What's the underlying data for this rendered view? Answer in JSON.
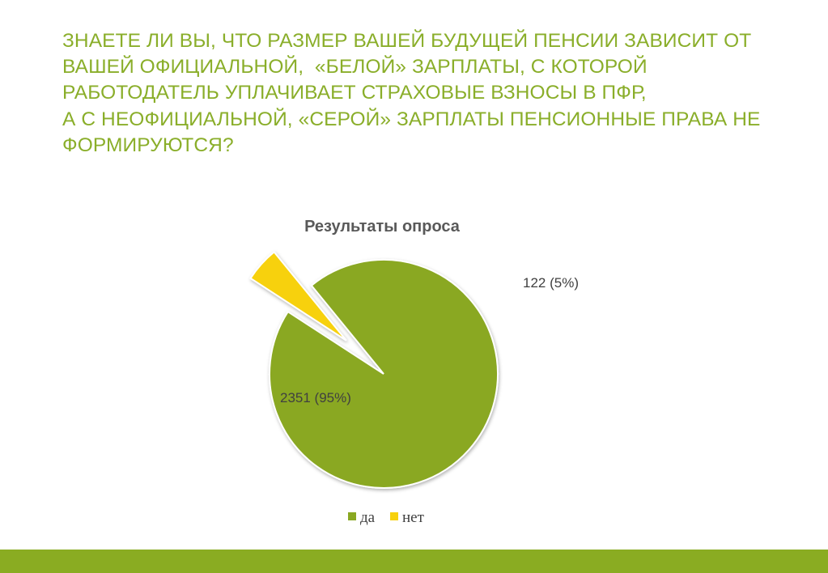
{
  "heading": {
    "lines": [
      "ЗНАЕТЕ ЛИ ВЫ, ЧТО РАЗМЕР ВАШЕЙ БУДУЩЕЙ ПЕНСИИ ЗАВИСИТ ОТ",
      "ВАШЕЙ ОФИЦИАЛЬНОЙ,  «БЕЛОЙ» ЗАРПЛАТЫ, С КОТОРОЙ",
      "РАБОТОДАТЕЛЬ УПЛАЧИВАЕТ СТРАХОВЫЕ ВЗНОСЫ В ПФР,",
      "А С НЕОФИЦИАЛЬНОЙ, «СЕРОЙ» ЗАРПЛАТЫ ПЕНСИОННЫЕ ПРАВА НЕ",
      "ФОРМИРУЮТСЯ?"
    ]
  },
  "colors": {
    "heading": "#8aae2a",
    "footer_bar": "#8aac22",
    "slice_da": "#8aa822",
    "slice_net": "#f7d10c"
  },
  "chart_data": {
    "type": "pie",
    "title": "Результаты опроса",
    "slices": [
      {
        "label": "да",
        "value": 2351,
        "data_label": "2351 (95%)"
      },
      {
        "label": "нет",
        "value": 122,
        "data_label": "122 (5%)",
        "exploded": true
      }
    ],
    "legend": {
      "position": "bottom",
      "entries": [
        "да",
        "нет"
      ]
    }
  }
}
